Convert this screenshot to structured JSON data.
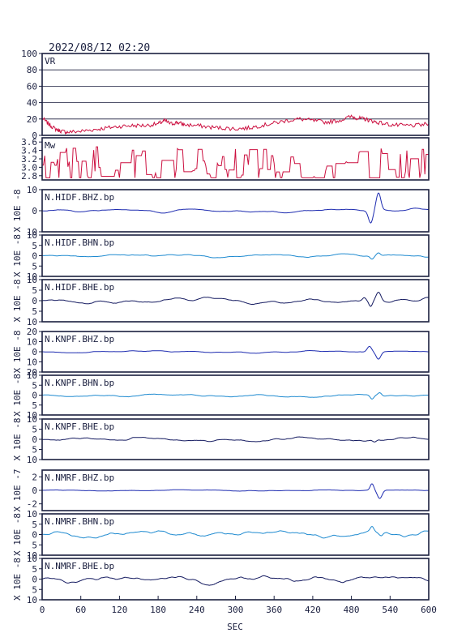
{
  "header": {
    "datetime": "2022/08/12 02:20"
  },
  "chart_data": {
    "type": "line",
    "x_axis": {
      "xlabel": "SEC",
      "xlim": [
        0,
        600
      ],
      "ticks": [
        0,
        60,
        120,
        180,
        240,
        300,
        360,
        420,
        480,
        540,
        600
      ]
    },
    "panels": [
      {
        "kind": "vr",
        "label": "VR",
        "color": "#cc1040",
        "ylim": [
          0,
          100
        ],
        "ticks": [
          0,
          20,
          40,
          60,
          80,
          100
        ],
        "grid": true,
        "x": [
          0,
          10,
          20,
          30,
          40,
          60,
          80,
          100,
          120,
          140,
          160,
          180,
          190,
          200,
          210,
          220,
          240,
          260,
          280,
          300,
          320,
          340,
          360,
          380,
          400,
          420,
          440,
          460,
          480,
          490,
          500,
          510,
          520,
          540,
          560,
          580,
          600
        ],
        "y": [
          21,
          14,
          8,
          5,
          4,
          5,
          7,
          9,
          11,
          12,
          12,
          14,
          18,
          14,
          16,
          13,
          12,
          10,
          9,
          8,
          9,
          12,
          15,
          18,
          20,
          18,
          16,
          18,
          23,
          21,
          20,
          18,
          16,
          13,
          12,
          12,
          14
        ]
      },
      {
        "kind": "mw",
        "label": "Mw",
        "color": "#cc1040",
        "ylim": [
          2.7,
          3.7
        ],
        "ticks": [
          2.8,
          3.0,
          3.2,
          3.4,
          3.6
        ],
        "mean": 3.05,
        "noise": 0.22
      },
      {
        "kind": "wave",
        "label": "N.HIDF.BHZ.bp",
        "ylabel": "X 10E -8",
        "color": "#1d2bb0",
        "ylim": [
          -10,
          10
        ],
        "ticks": [
          -10,
          0,
          10
        ],
        "tick_labels": [
          "10",
          "0",
          "10"
        ],
        "event": [
          {
            "t": 510,
            "a": -6,
            "w": 5
          },
          {
            "t": 522,
            "a": 8,
            "w": 5
          }
        ],
        "noise": 0.4
      },
      {
        "kind": "wave",
        "label": "N.HIDF.BHN.bp",
        "ylabel": "X 10E -8",
        "color": "#1e8ad0",
        "ylim": [
          -10,
          10
        ],
        "ticks": [
          -10,
          -5,
          0,
          5,
          10
        ],
        "tick_labels": [
          "10",
          "5",
          "0",
          "5",
          "10"
        ],
        "event": [
          {
            "t": 512,
            "a": -1.5,
            "w": 4
          },
          {
            "t": 522,
            "a": 1.2,
            "w": 4
          }
        ],
        "noise": 0.4
      },
      {
        "kind": "wave",
        "label": "N.HIDF.BHE.bp",
        "ylabel": "X 10E -8",
        "color": "#141a60",
        "ylim": [
          -10,
          10
        ],
        "ticks": [
          -10,
          -5,
          0,
          5,
          10
        ],
        "tick_labels": [
          "10",
          "5",
          "0",
          "5",
          "10"
        ],
        "event": [
          {
            "t": 500,
            "a": 1.5,
            "w": 4
          },
          {
            "t": 510,
            "a": -3,
            "w": 4
          },
          {
            "t": 522,
            "a": 3.5,
            "w": 5
          }
        ],
        "noise": 0.7
      },
      {
        "kind": "wave",
        "label": "N.KNPF.BHZ.bp",
        "ylabel": "X 10E -8",
        "color": "#1d2bb0",
        "ylim": [
          -20,
          20
        ],
        "ticks": [
          -20,
          -10,
          0,
          10,
          20
        ],
        "tick_labels": [
          "20",
          "10",
          "0",
          "10",
          "20"
        ],
        "event": [
          {
            "t": 508,
            "a": 6,
            "w": 5
          },
          {
            "t": 522,
            "a": -7,
            "w": 5
          }
        ],
        "noise": 0.5
      },
      {
        "kind": "wave",
        "label": "N.KNPF.BHN.bp",
        "ylabel": "X 10E -8",
        "color": "#1e8ad0",
        "ylim": [
          -10,
          10
        ],
        "ticks": [
          -10,
          -5,
          0,
          5,
          10
        ],
        "tick_labels": [
          "10",
          "5",
          "0",
          "5",
          "10"
        ],
        "event": [
          {
            "t": 512,
            "a": -2,
            "w": 4
          },
          {
            "t": 524,
            "a": 1.5,
            "w": 4
          }
        ],
        "noise": 0.4
      },
      {
        "kind": "wave",
        "label": "N.KNPF.BHE.bp",
        "ylabel": "X 10E -8",
        "color": "#141a60",
        "ylim": [
          -10,
          10
        ],
        "ticks": [
          -10,
          -5,
          0,
          5,
          10
        ],
        "tick_labels": [
          "10",
          "5",
          "0",
          "5",
          "10"
        ],
        "event": [
          {
            "t": 516,
            "a": -1,
            "w": 4
          }
        ],
        "noise": 0.6
      },
      {
        "kind": "wave",
        "label": "N.NMRF.BHZ.bp",
        "ylabel": "X 10E -7",
        "color": "#1d2bb0",
        "ylim": [
          -3,
          3
        ],
        "ticks": [
          -2,
          0,
          2
        ],
        "tick_labels": [
          "-2",
          "0",
          "2"
        ],
        "event": [
          {
            "t": 512,
            "a": 1,
            "w": 4
          },
          {
            "t": 524,
            "a": -1.2,
            "w": 5
          }
        ],
        "noise": 0.05
      },
      {
        "kind": "wave",
        "label": "N.NMRF.BHN.bp",
        "ylabel": "X 10E -8",
        "color": "#1e8ad0",
        "ylim": [
          -10,
          10
        ],
        "ticks": [
          -10,
          -5,
          0,
          5,
          10
        ],
        "tick_labels": [
          "10",
          "5",
          "0",
          "5",
          "10"
        ],
        "event": [
          {
            "t": 512,
            "a": 2.5,
            "w": 4
          },
          {
            "t": 526,
            "a": -2,
            "w": 5
          }
        ],
        "noise": 1.0
      },
      {
        "kind": "wave",
        "label": "N.NMRF.BHE.bp",
        "ylabel": "X 10E -8",
        "color": "#141a60",
        "ylim": [
          -10,
          10
        ],
        "ticks": [
          -10,
          -5,
          0,
          5,
          10
        ],
        "tick_labels": [
          "10",
          "5",
          "0",
          "5",
          "10"
        ],
        "event": [],
        "noise": 1.0
      }
    ]
  }
}
